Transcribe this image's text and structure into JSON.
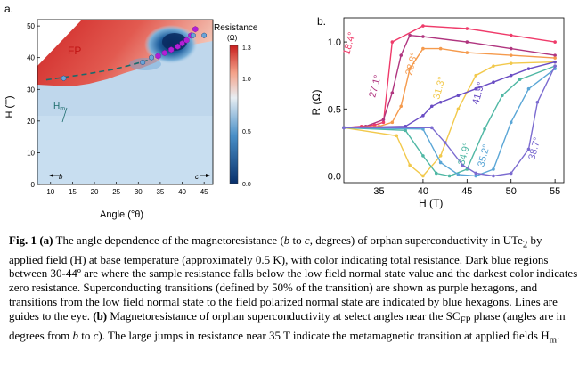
{
  "panel_a": {
    "label": "a.",
    "xlabel": "Angle (°θ)",
    "ylabel": "H (T)",
    "xticks": [
      "10",
      "15",
      "20",
      "25",
      "30",
      "35",
      "40",
      "45"
    ],
    "yticks": [
      "0",
      "10",
      "20",
      "30",
      "40",
      "50"
    ],
    "region_fp": "FP",
    "region_hm": "H",
    "region_hm_sub": "m",
    "b_axis_arrow": "b",
    "c_axis_arrow": "c",
    "colorbar": {
      "title": "Resistance",
      "unit": "(Ω)",
      "ticks": [
        "1.3",
        "1.0",
        "0.5",
        "0.0"
      ]
    },
    "colors": {
      "red": "#d62728",
      "blue_dark": "#08306b",
      "light_blue": "#cfe3f3",
      "purple": "#b21fd6",
      "hex_blue": "#6aa4d8"
    }
  },
  "panel_b": {
    "label": "b.",
    "xlabel": "H (T)",
    "ylabel": "R (Ω)",
    "xticks": [
      "35",
      "40",
      "45",
      "50",
      "55"
    ],
    "yticks": [
      "0.0",
      "0.5",
      "1.0"
    ],
    "curve_labels": [
      "18.4°",
      "27.1°",
      "28.8°",
      "31.3°",
      "41.9°",
      "34.9°",
      "35.2°",
      "38.7°"
    ]
  },
  "chart_data": [
    {
      "type": "heatmap",
      "title": "",
      "xlabel": "Angle (°θ)",
      "ylabel": "H (T)",
      "xlim": [
        7,
        47
      ],
      "ylim": [
        0,
        52
      ],
      "colorbar": {
        "label": "Resistance (Ω)",
        "range": [
          0.0,
          1.3
        ]
      },
      "series": [
        {
          "name": "Hm boundary",
          "x": [
            9,
            12,
            15,
            18,
            21,
            24,
            27,
            30,
            33
          ],
          "y": [
            33.0,
            33.6,
            34.2,
            34.8,
            35.5,
            36.2,
            37.2,
            38.3,
            39.5
          ]
        },
        {
          "name": "SC_FP transitions (purple hexagons)",
          "x": [
            34.5,
            36,
            37.5,
            39,
            40,
            41,
            42,
            43
          ],
          "y": [
            40.5,
            41.5,
            42.5,
            43.5,
            44.5,
            45.5,
            47,
            49
          ]
        },
        {
          "name": "Hm transitions (blue hexagons)",
          "x": [
            13,
            31,
            33,
            42.5,
            45
          ],
          "y": [
            33.5,
            38.5,
            40,
            47,
            47
          ]
        }
      ]
    },
    {
      "type": "line",
      "title": "",
      "xlabel": "H (T)",
      "ylabel": "R (Ω)",
      "xlim": [
        31,
        56
      ],
      "ylim": [
        -0.05,
        1.18
      ],
      "series": [
        {
          "name": "18.4°",
          "x": [
            31,
            33,
            34.5,
            35.5,
            36.5,
            40,
            45,
            50,
            55
          ],
          "y": [
            0.36,
            0.37,
            0.38,
            0.4,
            1.0,
            1.12,
            1.1,
            1.05,
            1.0
          ]
        },
        {
          "name": "27.1°",
          "x": [
            31,
            33.5,
            35.5,
            36.5,
            37.5,
            38.5,
            40,
            45,
            50,
            55
          ],
          "y": [
            0.36,
            0.37,
            0.42,
            0.62,
            0.9,
            1.05,
            1.04,
            1.0,
            0.95,
            0.9
          ]
        },
        {
          "name": "28.8°",
          "x": [
            31,
            35,
            36.5,
            37.5,
            38.5,
            40,
            42,
            45,
            50,
            55
          ],
          "y": [
            0.36,
            0.37,
            0.4,
            0.52,
            0.8,
            0.95,
            0.95,
            0.92,
            0.9,
            0.88
          ]
        },
        {
          "name": "31.3°",
          "x": [
            31,
            37,
            38.5,
            40,
            42,
            44,
            46,
            48,
            50,
            55
          ],
          "y": [
            0.36,
            0.3,
            0.08,
            0.0,
            0.15,
            0.5,
            0.75,
            0.82,
            0.84,
            0.85
          ]
        },
        {
          "name": "41.9°",
          "x": [
            31,
            38,
            40,
            41,
            42,
            44,
            46,
            48,
            50,
            52,
            55
          ],
          "y": [
            0.36,
            0.37,
            0.45,
            0.52,
            0.55,
            0.6,
            0.65,
            0.7,
            0.75,
            0.8,
            0.85
          ]
        },
        {
          "name": "34.9°",
          "x": [
            31,
            38,
            40,
            41.5,
            43,
            45,
            47,
            49,
            51,
            55
          ],
          "y": [
            0.36,
            0.34,
            0.15,
            0.02,
            0.0,
            0.05,
            0.35,
            0.6,
            0.72,
            0.82
          ]
        },
        {
          "name": "35.2°",
          "x": [
            31,
            40,
            42,
            44,
            46,
            48,
            50,
            52,
            55
          ],
          "y": [
            0.36,
            0.35,
            0.1,
            0.01,
            0.0,
            0.05,
            0.4,
            0.65,
            0.8
          ]
        },
        {
          "name": "38.7°",
          "x": [
            31,
            41,
            42.5,
            44.5,
            46,
            48,
            50,
            52,
            53,
            55
          ],
          "y": [
            0.36,
            0.36,
            0.25,
            0.08,
            0.02,
            0.0,
            0.02,
            0.2,
            0.55,
            0.82
          ]
        }
      ]
    }
  ],
  "caption": {
    "fig_label": "Fig. 1",
    "part_a": "(a)",
    "text1": " The angle dependence of the magnetoresistance (",
    "b_it": "b",
    "text2": " to ",
    "c_it": "c",
    "text3": ", degrees) of orphan superconductivity in UTe",
    "sub2": "2",
    "text4": " by applied field (H) at base temperature (approximately 0.5 K), with color indicating total resistance. Dark blue regions between 30-44º are where the sample resistance falls below the low field normal state value and the darkest color indicates zero resistance. Superconducting transitions (defined by 50% of the transition) are shown as purple hexagons, and transitions from the low field normal state to the field polarized normal state are indicated by blue hexagons. Lines are guides to the eye. ",
    "part_b": "(b)",
    "text5": " Magnetoresistance of orphan superconductivity at select angles near the SC",
    "sub_fp": "FP",
    "text6": " phase (angles are in degrees from ",
    "b_it2": "b",
    "text7": " to ",
    "c_it2": "c",
    "text8": "). The large jumps in resistance near 35 T indicate the metamagnetic transition at applied fields H",
    "sub_m": "m",
    "text9": "."
  }
}
